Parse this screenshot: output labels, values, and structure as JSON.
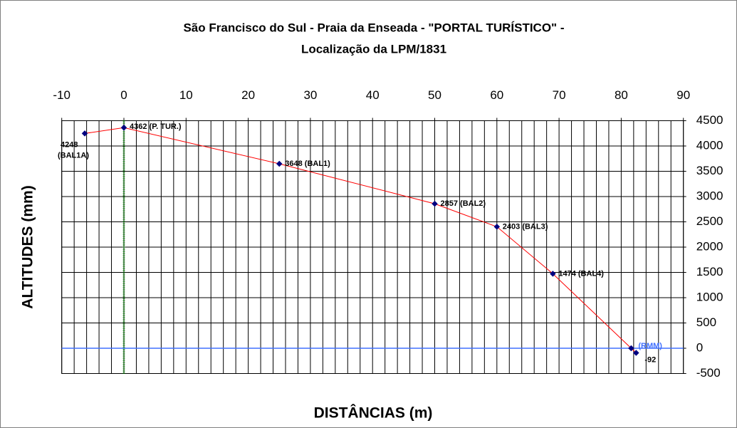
{
  "chart_data": {
    "type": "line",
    "title": [
      "São Francisco do Sul - Praia da Enseada - \"PORTAL TURÍSTICO\" -",
      "Localização da LPM/1831"
    ],
    "x_label": "DISTÂNCIAS (m)",
    "y_label": "ALTITUDES (mm)",
    "x": [
      -6.3,
      0,
      25,
      50,
      60,
      69,
      81.6,
      82.4
    ],
    "series": [
      {
        "color": "#ff0000",
        "marker_color": "#000080",
        "values": [
          4248,
          4362,
          3648,
          2857,
          2403,
          1474,
          0,
          -92
        ],
        "value_labels": [
          "4248 (BAL1A)",
          "4362 (P. TUR.)",
          "3648 (BAL1)",
          "2857 (BAL2)",
          "2403 (BAL3)",
          "1474 (BAL4)",
          "(RMM)",
          "-92"
        ]
      }
    ],
    "xlim": [
      -10,
      90
    ],
    "xticks": [
      -10,
      0,
      10,
      20,
      30,
      40,
      50,
      60,
      70,
      80,
      90
    ],
    "ylim": [
      -500,
      4500
    ],
    "yticks": [
      -500,
      0,
      500,
      1000,
      1500,
      2000,
      2500,
      3000,
      3500,
      4000,
      4500
    ],
    "x_axis_position": "top",
    "y_axis_position": "right",
    "grid": true,
    "x_grid_step": 2,
    "x_zero_line_color": "#00a000",
    "y_zero_line_color": "#4070ff"
  }
}
